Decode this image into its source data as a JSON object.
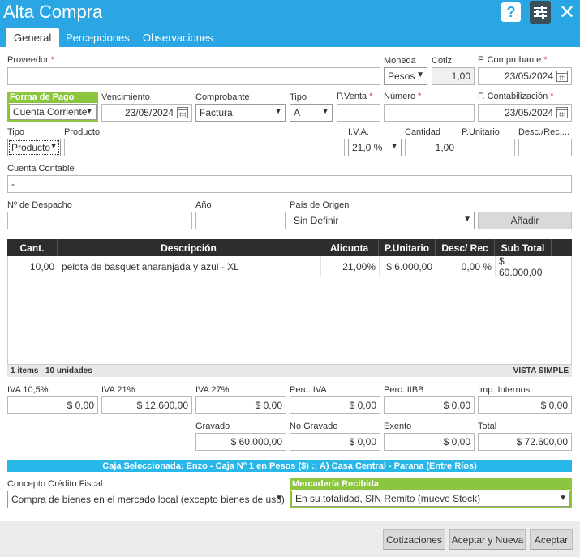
{
  "window": {
    "title": "Alta Compra"
  },
  "tabs": [
    "General",
    "Percepciones",
    "Observaciones"
  ],
  "form": {
    "proveedor": {
      "label": "Proveedor",
      "value": ""
    },
    "moneda": {
      "label": "Moneda",
      "value": "Pesos"
    },
    "cotiz": {
      "label": "Cotiz.",
      "value": "1,00"
    },
    "f_comprobante": {
      "label": "F. Comprobante",
      "value": "23/05/2024"
    },
    "forma_pago": {
      "label": "Forma de Pago",
      "value": "Cuenta Corriente"
    },
    "vencimiento": {
      "label": "Vencimiento",
      "value": "23/05/2024"
    },
    "comprobante": {
      "label": "Comprobante",
      "value": "Factura"
    },
    "tipo": {
      "label": "Tipo",
      "value": "A"
    },
    "p_venta": {
      "label": "P.Venta",
      "value": ""
    },
    "numero": {
      "label": "Número",
      "value": ""
    },
    "f_contabilizacion": {
      "label": "F. Contabilización",
      "value": "23/05/2024"
    },
    "tipo_producto": {
      "label": "Tipo",
      "value": "Producto"
    },
    "producto": {
      "label": "Producto",
      "value": ""
    },
    "iva": {
      "label": "I.V.A.",
      "value": "21,0 %"
    },
    "cantidad": {
      "label": "Cantidad",
      "value": "1,00"
    },
    "p_unitario": {
      "label": "P.Unitario",
      "value": ""
    },
    "desc_rec": {
      "label": "Desc./Rec....",
      "value": ""
    },
    "cuenta_contable": {
      "label": "Cuenta Contable",
      "value": "-"
    },
    "nro_despacho": {
      "label": "Nº de Despacho",
      "value": ""
    },
    "anio": {
      "label": "Año",
      "value": ""
    },
    "pais_origen": {
      "label": "País de Origen",
      "value": "Sin Definir"
    },
    "add_button": "Añadir"
  },
  "grid": {
    "columns": [
      "Cant.",
      "Descripción",
      "Alicuota",
      "P.Unitario",
      "Desc/ Rec",
      "Sub Total"
    ],
    "rows": [
      {
        "cant": "10,00",
        "descripcion": "pelota de basquet anaranjada y azul - XL",
        "alicuota": "21,00%",
        "unitario": "$ 6.000,00",
        "desc": "0,00 %",
        "subtotal": "$ 60.000,00"
      }
    ],
    "footer_items": "1 items",
    "footer_units": "10 unidades",
    "view_mode": "VISTA SIMPLE"
  },
  "totals": {
    "iva105": {
      "label": "IVA 10,5%",
      "value": "$ 0,00"
    },
    "iva21": {
      "label": "IVA 21%",
      "value": "$ 12.600,00"
    },
    "iva27": {
      "label": "IVA 27%",
      "value": "$ 0,00"
    },
    "perc_iva": {
      "label": "Perc. IVA",
      "value": "$ 0,00"
    },
    "perc_iibb": {
      "label": "Perc. IIBB",
      "value": "$ 0,00"
    },
    "imp_internos": {
      "label": "Imp. Internos",
      "value": "$ 0,00"
    },
    "gravado": {
      "label": "Gravado",
      "value": "$ 60.000,00"
    },
    "no_gravado": {
      "label": "No Gravado",
      "value": "$ 0,00"
    },
    "exento": {
      "label": "Exento",
      "value": "$ 0,00"
    },
    "total": {
      "label": "Total",
      "value": "$ 72.600,00"
    }
  },
  "caja": "Caja Seleccionada: Enzo - Caja Nº 1 en Pesos ($) :: A) Casa Central - Parana (Entre Ríos)",
  "concepto_credito": {
    "label": "Concepto Crédito Fiscal",
    "value": "Compra de bienes en el mercado local (excepto bienes de uso)"
  },
  "mercaderia": {
    "label": "Mercadería Recibida",
    "value": "En su totalidad, SIN Remito (mueve Stock)"
  },
  "buttons": {
    "cotizaciones": "Cotizaciones",
    "aceptar_nueva": "Aceptar y Nueva",
    "aceptar": "Aceptar"
  },
  "icons": {
    "help": "help-icon",
    "settings": "sliders-icon",
    "close": "close-icon"
  },
  "colors": {
    "header": "#29a6e3",
    "accent_green": "#8cc63f",
    "grid_header": "#2d2d2d",
    "caja_bar": "#29b6e8"
  }
}
